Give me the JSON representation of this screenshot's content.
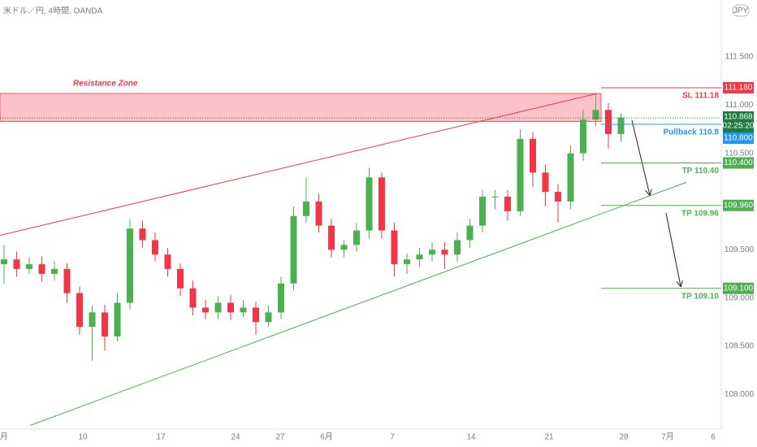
{
  "chart_data": {
    "type": "candlestick",
    "title": "米ドル／円, 4時間, OANDA",
    "currency": "JPY",
    "x_labels": [
      "月",
      "10",
      "17",
      "24",
      "27",
      "6月",
      "7",
      "14",
      "21",
      "28",
      "7月",
      "6"
    ],
    "open": [
      109.35,
      109.4,
      109.3,
      109.35,
      109.25,
      109.3,
      109.05,
      108.7,
      108.85,
      108.6,
      108.95,
      109.72,
      109.6,
      109.45,
      109.3,
      109.1,
      108.9,
      108.85,
      108.95,
      108.85,
      108.9,
      108.75,
      108.85,
      109.15,
      109.85,
      110.0,
      109.75,
      109.5,
      109.55,
      109.7,
      110.25,
      109.7,
      109.35,
      109.4,
      109.45,
      109.5,
      109.45,
      109.6,
      109.75,
      110.05,
      110.05,
      109.9,
      110.65,
      110.3,
      110.1,
      110.0,
      110.5,
      110.85,
      110.95,
      110.7
    ],
    "high": [
      109.55,
      109.48,
      109.42,
      109.43,
      109.38,
      109.36,
      109.12,
      108.92,
      108.93,
      109.05,
      109.82,
      109.8,
      109.68,
      109.52,
      109.36,
      109.18,
      108.98,
      109.02,
      109.03,
      108.98,
      108.96,
      108.92,
      109.22,
      109.95,
      110.25,
      110.08,
      109.82,
      109.6,
      109.78,
      110.35,
      110.3,
      109.78,
      109.46,
      109.52,
      109.58,
      109.58,
      109.68,
      109.82,
      110.12,
      110.12,
      110.12,
      110.75,
      110.72,
      110.38,
      110.18,
      110.58,
      110.95,
      111.12,
      111.02,
      110.92
    ],
    "low": [
      109.15,
      109.22,
      109.25,
      109.17,
      109.18,
      108.95,
      108.62,
      108.35,
      108.45,
      108.55,
      108.88,
      109.52,
      109.38,
      109.22,
      109.02,
      108.82,
      108.78,
      108.78,
      108.77,
      108.8,
      108.62,
      108.7,
      108.78,
      109.08,
      109.78,
      109.68,
      109.42,
      109.42,
      109.48,
      109.62,
      109.62,
      109.22,
      109.25,
      109.32,
      109.38,
      109.3,
      109.38,
      109.52,
      109.68,
      109.92,
      109.8,
      109.85,
      110.15,
      109.95,
      109.78,
      109.92,
      110.42,
      110.78,
      110.55,
      110.62
    ],
    "close": [
      109.4,
      109.3,
      109.35,
      109.25,
      109.3,
      109.05,
      108.7,
      108.85,
      108.6,
      108.95,
      109.72,
      109.6,
      109.45,
      109.3,
      109.1,
      108.9,
      108.85,
      108.95,
      108.85,
      108.9,
      108.75,
      108.85,
      109.15,
      109.85,
      110.0,
      109.75,
      109.5,
      109.55,
      109.7,
      110.25,
      109.7,
      109.35,
      109.4,
      109.45,
      109.5,
      109.45,
      109.6,
      109.75,
      110.05,
      110.05,
      109.9,
      110.65,
      110.3,
      110.1,
      110.0,
      110.5,
      110.85,
      110.95,
      110.7,
      110.87
    ],
    "up_color": "#4caf50",
    "down_color": "#f23645",
    "ylim": [
      107.64,
      112.09
    ],
    "yticks": [
      {
        "value": 111.5,
        "label": "111.500"
      },
      {
        "value": 111,
        "label": "111.000"
      },
      {
        "value": 110.5,
        "label": "110.500"
      },
      {
        "value": 109.5,
        "label": "109.500"
      },
      {
        "value": 109,
        "label": "109.000"
      },
      {
        "value": 108.5,
        "label": "108.500"
      },
      {
        "value": 108,
        "label": "108.000"
      }
    ],
    "resistance_zone": {
      "label": "Resistance Zone",
      "top": 111.12,
      "bottom": 110.83,
      "color": "#f23645"
    },
    "trendlines": [
      {
        "color": "#f23645",
        "x": [
          -0.3,
          47.1
        ],
        "y": [
          109.65,
          111.12
        ]
      },
      {
        "color": "#4caf50",
        "x": [
          2.1,
          54.2
        ],
        "y": [
          107.68,
          110.2
        ]
      }
    ],
    "last_price": {
      "value": 110.868,
      "label": "110.868",
      "countdown": "02:25:20",
      "color": "#1e7a3d"
    },
    "levels": [
      {
        "label": "SL 111.18",
        "value": 111.18,
        "value_label": "111.180",
        "color": "#f23645"
      },
      {
        "label": "Pullback 110.8",
        "value": 110.8,
        "value_label": "110.800",
        "color": "#2196f3"
      },
      {
        "label": "TP 110.40",
        "value": 110.4,
        "value_label": "110.400",
        "color": "#4caf50"
      },
      {
        "label": "TP 109.96",
        "value": 109.96,
        "value_label": "109.960",
        "color": "#4caf50"
      },
      {
        "label": "TP 109.10",
        "value": 109.1,
        "value_label": "109.100",
        "color": "#4caf50"
      }
    ]
  }
}
